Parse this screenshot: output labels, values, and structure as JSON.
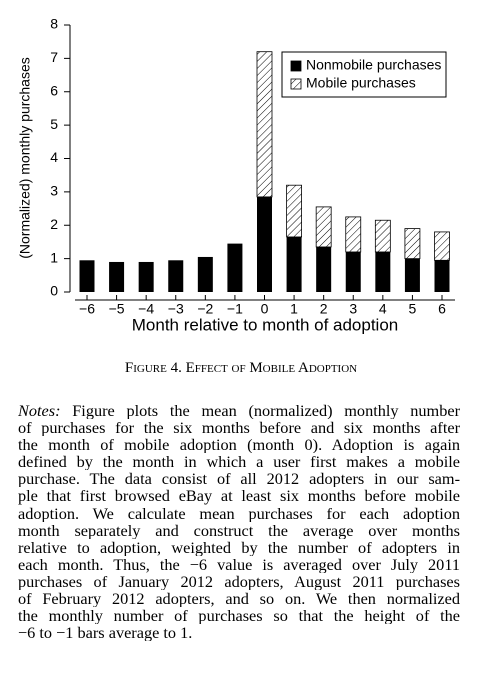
{
  "chart_data": {
    "type": "stacked-bar",
    "categories": [
      "−6",
      "−5",
      "−4",
      "−3",
      "−2",
      "−1",
      "0",
      "1",
      "2",
      "3",
      "4",
      "5",
      "6"
    ],
    "series": [
      {
        "name": "Nonmobile purchases",
        "color": "#000000",
        "pattern": "solid",
        "values": [
          0.95,
          0.9,
          0.9,
          0.95,
          1.05,
          1.45,
          2.85,
          1.65,
          1.35,
          1.2,
          1.2,
          1.0,
          0.95
        ]
      },
      {
        "name": "Mobile purchases",
        "color": "#000000",
        "pattern": "hatch",
        "values": [
          0,
          0,
          0,
          0,
          0,
          0,
          4.35,
          1.55,
          1.2,
          1.05,
          0.95,
          0.9,
          0.85
        ]
      }
    ],
    "ylim": [
      0,
      8
    ],
    "yticks": [
      0,
      1,
      2,
      3,
      4,
      5,
      6,
      7,
      8
    ],
    "xlabel": "Month relative to month of adoption",
    "ylabel": "(Normalized) monthly purchases",
    "legend": "upper right"
  },
  "caption": "Figure 4. Effect of Mobile Adoption",
  "notes": {
    "label": "Notes:",
    "lines": [
      "Figure plots the mean (normalized) monthly number",
      "of purchases for the six months before and six months after",
      "the month of mobile adoption (month 0). Adoption is again",
      "defined by the month in which a user first makes a mobile",
      "purchase. The data consist of all 2012 adopters in our sam-",
      "ple that first browsed eBay at least six months before mobile",
      "adoption. We calculate mean purchases for each adoption",
      "month separately and construct the average over months",
      "relative to adoption, weighted by the number of adopters in",
      "each month. Thus, the −6 value is averaged over July 2011",
      "purchases of January 2012 adopters, August 2011 purchases",
      "of February 2012 adopters, and so on. We then normalized",
      "the monthly number of purchases so that the height of the",
      "−6 to −1 bars average to 1."
    ]
  }
}
